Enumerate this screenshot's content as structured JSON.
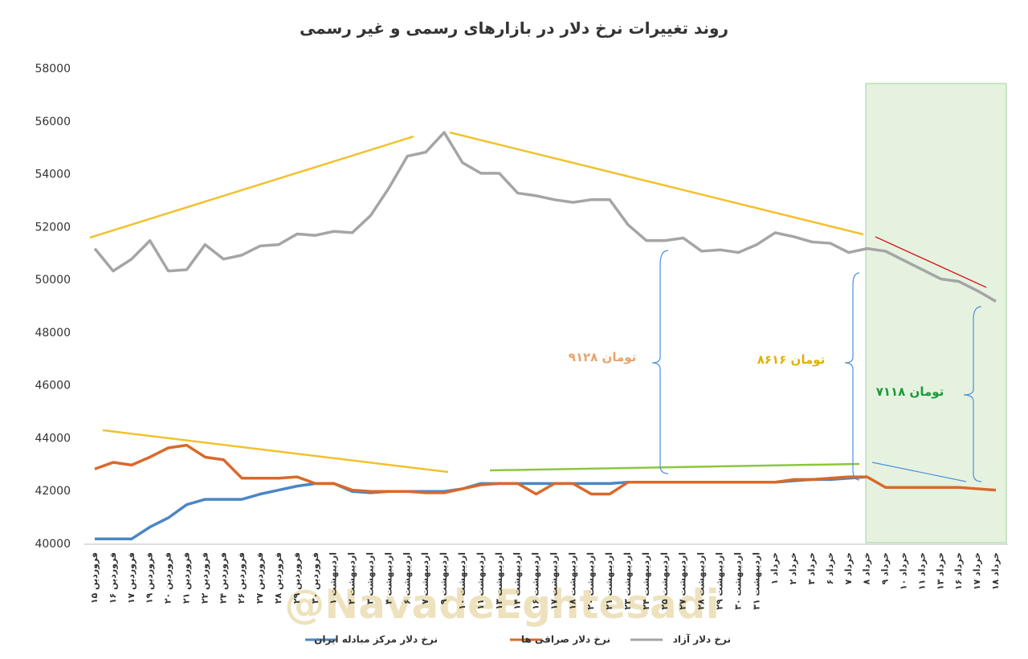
{
  "chart_data": {
    "type": "line",
    "title": "روند تغییرات نرخ دلار در بازارهای رسمی و غیر رسمی",
    "categories": [
      "۱۵ فروردین",
      "۱۶ فروردین",
      "۱۷ فروردین",
      "۱۹ فروردین",
      "۲۰ فروردین",
      "۲۱ فروردین",
      "۲۲ فروردین",
      "۲۴ فروردین",
      "۲۶ فروردین",
      "۲۷ فروردین",
      "۲۸ فروردین",
      "۲۹ فروردین",
      "۳۰ فروردین",
      "۱ اردیبهشت",
      "۲ اردیبهشت",
      "۳ اردیبهشت",
      "۴ اردیبهشت",
      "۶ اردیبهشت",
      "۷ اردیبهشت",
      "۹ اردیبهشت",
      "۱۰ اردیبهشت",
      "۱۱ اردیبهشت",
      "۱۳ اردیبهشت",
      "۱۴ اردیبهشت",
      "۱۶ اردیبهشت",
      "۱۷ اردیبهشت",
      "۱۸ اردیبهشت",
      "۲۰ اردیبهشت",
      "۲۱ اردیبهشت",
      "۲۳ اردیبهشت",
      "۲۴ اردیبهشت",
      "۲۵ اردیبهشت",
      "۲۷ اردیبهشت",
      "۲۸ اردیبهشت",
      "۲۹ اردیبهشت",
      "۳۰ اردیبهشت",
      "۳۱ اردیبهشت",
      "۱ خرداد",
      "۲ خرداد",
      "۳ خرداد",
      "۶ خرداد",
      "۷ خرداد",
      "۸ خرداد",
      "۹ خرداد",
      "۱۰ خرداد",
      "۱۱ خرداد",
      "۱۳ خرداد",
      "۱۶ خرداد",
      "۱۷ خرداد",
      "۱۸ خرداد"
    ],
    "series": [
      {
        "name": "نرخ دلار مرکز مبادله ایران",
        "color": "#4a86c5",
        "values": [
          40200,
          40200,
          40200,
          40650,
          41000,
          41500,
          41700,
          41700,
          41700,
          41900,
          42050,
          42200,
          42300,
          42300,
          42000,
          41950,
          42000,
          42000,
          42000,
          42000,
          42100,
          42300,
          42300,
          42300,
          42300,
          42300,
          42300,
          42300,
          42300,
          42350,
          42350,
          42350,
          42350,
          42350,
          42350,
          42350,
          42350,
          42350,
          42400,
          42450,
          42450,
          42500,
          42550,
          null,
          null,
          null,
          null,
          null,
          null,
          null
        ]
      },
      {
        "name": "نرخ دلار صرافی ها",
        "color": "#d9692a",
        "values": [
          42850,
          43100,
          43000,
          43300,
          43650,
          43750,
          43300,
          43200,
          42500,
          42500,
          42500,
          42550,
          42300,
          42300,
          42050,
          42000,
          42000,
          42000,
          41950,
          41950,
          42100,
          42250,
          42300,
          42300,
          41900,
          42300,
          42300,
          41900,
          41900,
          42350,
          42350,
          42350,
          42350,
          42350,
          42350,
          42350,
          42350,
          42350,
          42450,
          42450,
          42500,
          42550,
          42550,
          42150,
          42150,
          42150,
          42150,
          42150,
          42100,
          42050
        ]
      },
      {
        "name": "نرخ دلار آزاد",
        "color": "#a5a5a5",
        "values": [
          51200,
          50350,
          50800,
          51500,
          50350,
          50400,
          51350,
          50800,
          50950,
          51300,
          51350,
          51750,
          51700,
          51850,
          51800,
          52450,
          53500,
          54700,
          54850,
          55600,
          54450,
          54050,
          54050,
          53300,
          53200,
          53050,
          52950,
          53050,
          53050,
          52100,
          51500,
          51500,
          51600,
          51100,
          51150,
          51050,
          51350,
          51800,
          51650,
          51450,
          51400,
          51050,
          51200,
          51100,
          50750,
          50400,
          50050,
          49950,
          49600,
          49200
        ]
      }
    ],
    "ylim": [
      40000,
      58000
    ],
    "yticks": [
      40000,
      42000,
      44000,
      46000,
      48000,
      50000,
      52000,
      54000,
      56000,
      58000
    ],
    "annotations": [
      "۹۱۲۸ تومان",
      "۸۶۱۶ تومان",
      "۷۱۱۸ تومان"
    ],
    "watermark": "@NavadeEghtesadi"
  }
}
